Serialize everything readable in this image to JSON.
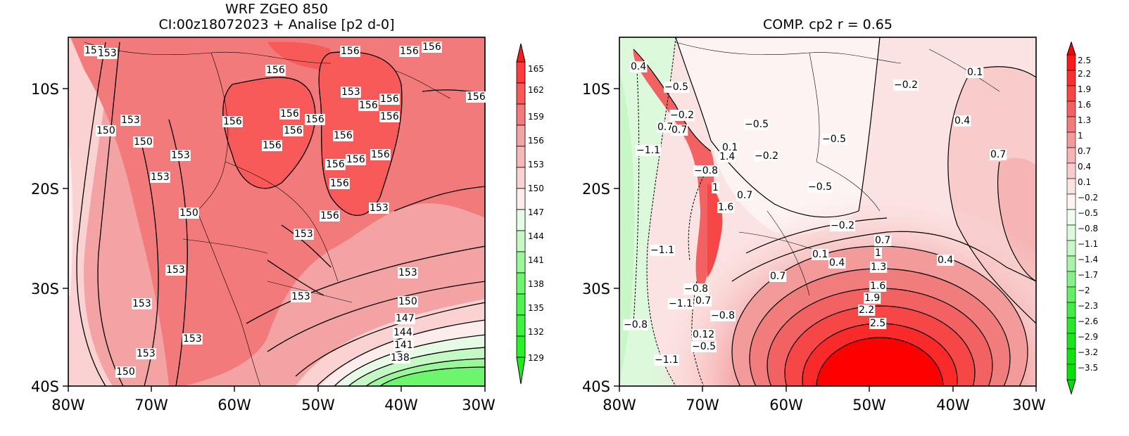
{
  "left": {
    "title_line1": "WRF ZGEO 850",
    "title_line2": "CI:00z18072023 + Analise  [p2 d-0]",
    "lat_ticks": [
      "10S",
      "20S",
      "30S",
      "40S"
    ],
    "lon_ticks": [
      "80W",
      "70W",
      "60W",
      "50W",
      "40W",
      "30W"
    ],
    "colorbar_labels": [
      "165",
      "162",
      "159",
      "156",
      "153",
      "150",
      "147",
      "144",
      "141",
      "138",
      "135",
      "132",
      "129"
    ],
    "contour_labels": [
      "153",
      "153",
      "156",
      "156",
      "156",
      "156",
      "156",
      "156",
      "153",
      "156",
      "156",
      "156",
      "156",
      "156",
      "156",
      "156",
      "156",
      "156",
      "156",
      "150",
      "150",
      "153",
      "153",
      "153",
      "150",
      "153",
      "153",
      "153",
      "153",
      "153",
      "153",
      "150",
      "147",
      "144",
      "141",
      "138",
      "153",
      "153",
      "150",
      "156",
      "156",
      "156"
    ]
  },
  "right": {
    "title": "COMP. cp2  r =  0.65",
    "lat_ticks": [
      "10S",
      "20S",
      "30S",
      "40S"
    ],
    "lon_ticks": [
      "80W",
      "70W",
      "60W",
      "50W",
      "40W",
      "30W"
    ],
    "colorbar_labels": [
      "2.5",
      "2.2",
      "1.9",
      "1.6",
      "1.3",
      "1",
      "0.7",
      "0.4",
      "0.1",
      "−0.2",
      "−0.5",
      "−0.8",
      "−1.1",
      "−1.4",
      "−1.7",
      "−2",
      "−2.3",
      "−2.6",
      "−2.9",
      "−3.2",
      "−3.5"
    ],
    "contour_labels": [
      "0.4",
      "−0.5",
      "−0.2",
      "0.7",
      "0.7",
      "−1.1",
      "0.1",
      "1.4",
      "−0.2",
      "−0.5",
      "−0.5",
      "−0.8",
      "−0.2",
      "0.1",
      "0.4",
      "0.7",
      "1",
      "1.6",
      "−0.5",
      "0.7",
      "−0.2",
      "−1.1",
      "0.1",
      "0.4",
      "0.7",
      "1",
      "1.3",
      "0.4",
      "0.7",
      "−0.8",
      "1.6",
      "1.9",
      "2.2",
      "2.5",
      "−1.1",
      "0.7",
      "−0.8",
      "0.12",
      "−0.5",
      "−0.8",
      "−1.1"
    ]
  },
  "colors": {
    "left_scale": [
      "#ff1a1a",
      "#ff3c3c",
      "#f85a5a",
      "#f27a7a",
      "#f3a3a3",
      "#fbd2d2",
      "#fcecec",
      "#e6fbe6",
      "#c4f9c4",
      "#9af79a",
      "#6ef56e",
      "#3ff23f",
      "#1aef1a"
    ],
    "right_scale": [
      "#ff0000",
      "#fb2a2a",
      "#f64646",
      "#f26262",
      "#f07c7c",
      "#f39a9a",
      "#f6b4b4",
      "#f9cccc",
      "#fce3e3",
      "#fdf3f3",
      "#f0fcf0",
      "#dcf9dc",
      "#c7f6c7",
      "#a8f3a8",
      "#88f088",
      "#66ee66",
      "#44eb44",
      "#28e828",
      "#1ae51a",
      "#10e310",
      "#00df00"
    ]
  }
}
